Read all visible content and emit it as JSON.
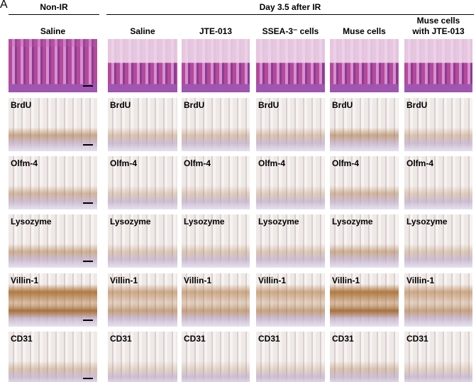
{
  "panel_label": "A",
  "groups": [
    "Non-IR",
    "Day 3.5 after IR"
  ],
  "columns": [
    "Saline",
    "Saline",
    "JTE-013",
    "SSEA-3⁻ cells",
    "Muse cells",
    "Muse cells with JTE-013"
  ],
  "stains": [
    "BrdU",
    "Olfm-4",
    "Lysozyme",
    "Villin-1",
    "CD31"
  ]
}
